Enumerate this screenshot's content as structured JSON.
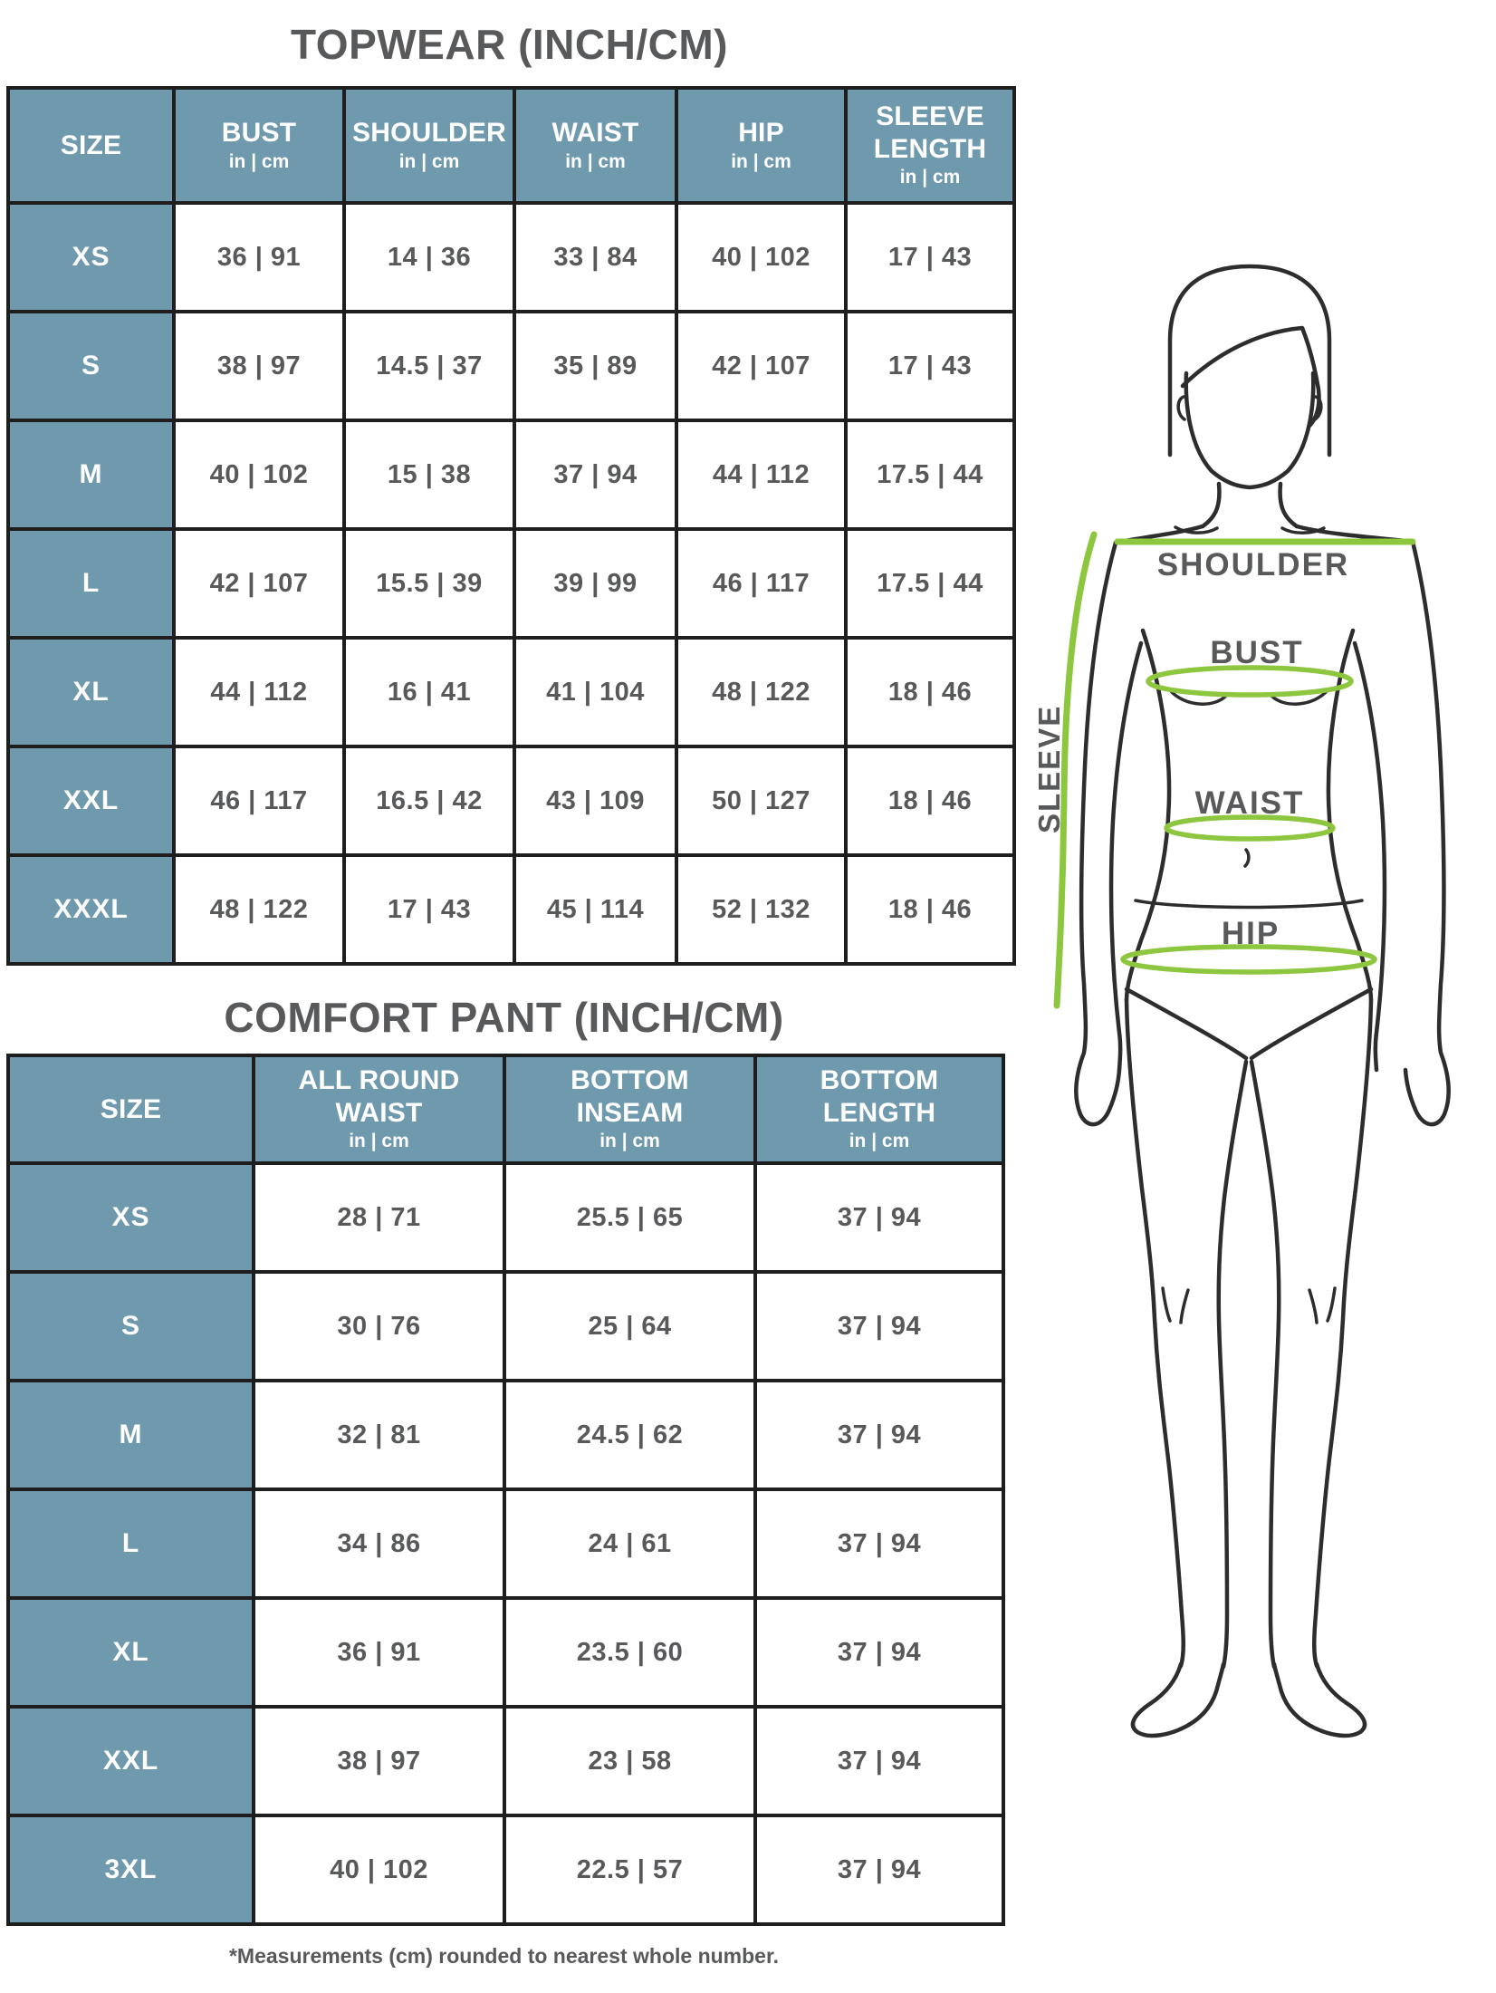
{
  "colors": {
    "header_bg": "#6F99AD",
    "border": "#1E1E1E",
    "text": "#58595B",
    "header_text": "#FFFFFF",
    "measure_green": "#8DC63F",
    "figure_line": "#2D2D2D"
  },
  "topwear": {
    "title": "TOPWEAR (INCH/CM)",
    "columns": [
      {
        "label": "SIZE",
        "sub": ""
      },
      {
        "label": "BUST",
        "sub": "in | cm"
      },
      {
        "label": "SHOULDER",
        "sub": "in | cm"
      },
      {
        "label": "WAIST",
        "sub": "in | cm"
      },
      {
        "label": "HIP",
        "sub": "in | cm"
      },
      {
        "label": "SLEEVE\nLENGTH",
        "sub": "in | cm"
      }
    ],
    "rows": [
      {
        "size": "XS",
        "cells": [
          "36 | 91",
          "14 | 36",
          "33 | 84",
          "40 | 102",
          "17 | 43"
        ]
      },
      {
        "size": "S",
        "cells": [
          "38 | 97",
          "14.5 | 37",
          "35 | 89",
          "42 | 107",
          "17 | 43"
        ]
      },
      {
        "size": "M",
        "cells": [
          "40 | 102",
          "15 | 38",
          "37 | 94",
          "44 | 112",
          "17.5 | 44"
        ]
      },
      {
        "size": "L",
        "cells": [
          "42 | 107",
          "15.5 | 39",
          "39 | 99",
          "46 | 117",
          "17.5 | 44"
        ]
      },
      {
        "size": "XL",
        "cells": [
          "44 | 112",
          "16 | 41",
          "41 | 104",
          "48 | 122",
          "18 | 46"
        ]
      },
      {
        "size": "XXL",
        "cells": [
          "46 | 117",
          "16.5 | 42",
          "43 | 109",
          "50 | 127",
          "18 | 46"
        ]
      },
      {
        "size": "XXXL",
        "cells": [
          "48 | 122",
          "17 | 43",
          "45 | 114",
          "52 | 132",
          "18 | 46"
        ]
      }
    ]
  },
  "comfort_pant": {
    "title": "COMFORT PANT (INCH/CM)",
    "columns": [
      {
        "label": "SIZE",
        "sub": ""
      },
      {
        "label": "ALL ROUND\nWAIST",
        "sub": "in | cm"
      },
      {
        "label": "BOTTOM\nINSEAM",
        "sub": "in | cm"
      },
      {
        "label": "BOTTOM\nLENGTH",
        "sub": "in | cm"
      }
    ],
    "rows": [
      {
        "size": "XS",
        "cells": [
          "28 | 71",
          "25.5 | 65",
          "37 | 94"
        ]
      },
      {
        "size": "S",
        "cells": [
          "30 | 76",
          "25 | 64",
          "37 | 94"
        ]
      },
      {
        "size": "M",
        "cells": [
          "32 | 81",
          "24.5 | 62",
          "37 | 94"
        ]
      },
      {
        "size": "L",
        "cells": [
          "34 | 86",
          "24 | 61",
          "37 | 94"
        ]
      },
      {
        "size": "XL",
        "cells": [
          "36 | 91",
          "23.5 | 60",
          "37 | 94"
        ]
      },
      {
        "size": "XXL",
        "cells": [
          "38 | 97",
          "23 | 58",
          "37 | 94"
        ]
      },
      {
        "size": "3XL",
        "cells": [
          "40 | 102",
          "22.5 | 57",
          "37 | 94"
        ]
      }
    ]
  },
  "footnote": "*Measurements (cm) rounded to nearest whole number.",
  "figure": {
    "labels": {
      "shoulder": "SHOULDER",
      "bust": "BUST",
      "waist": "WAIST",
      "hip": "HIP",
      "sleeve": "SLEEVE"
    }
  }
}
